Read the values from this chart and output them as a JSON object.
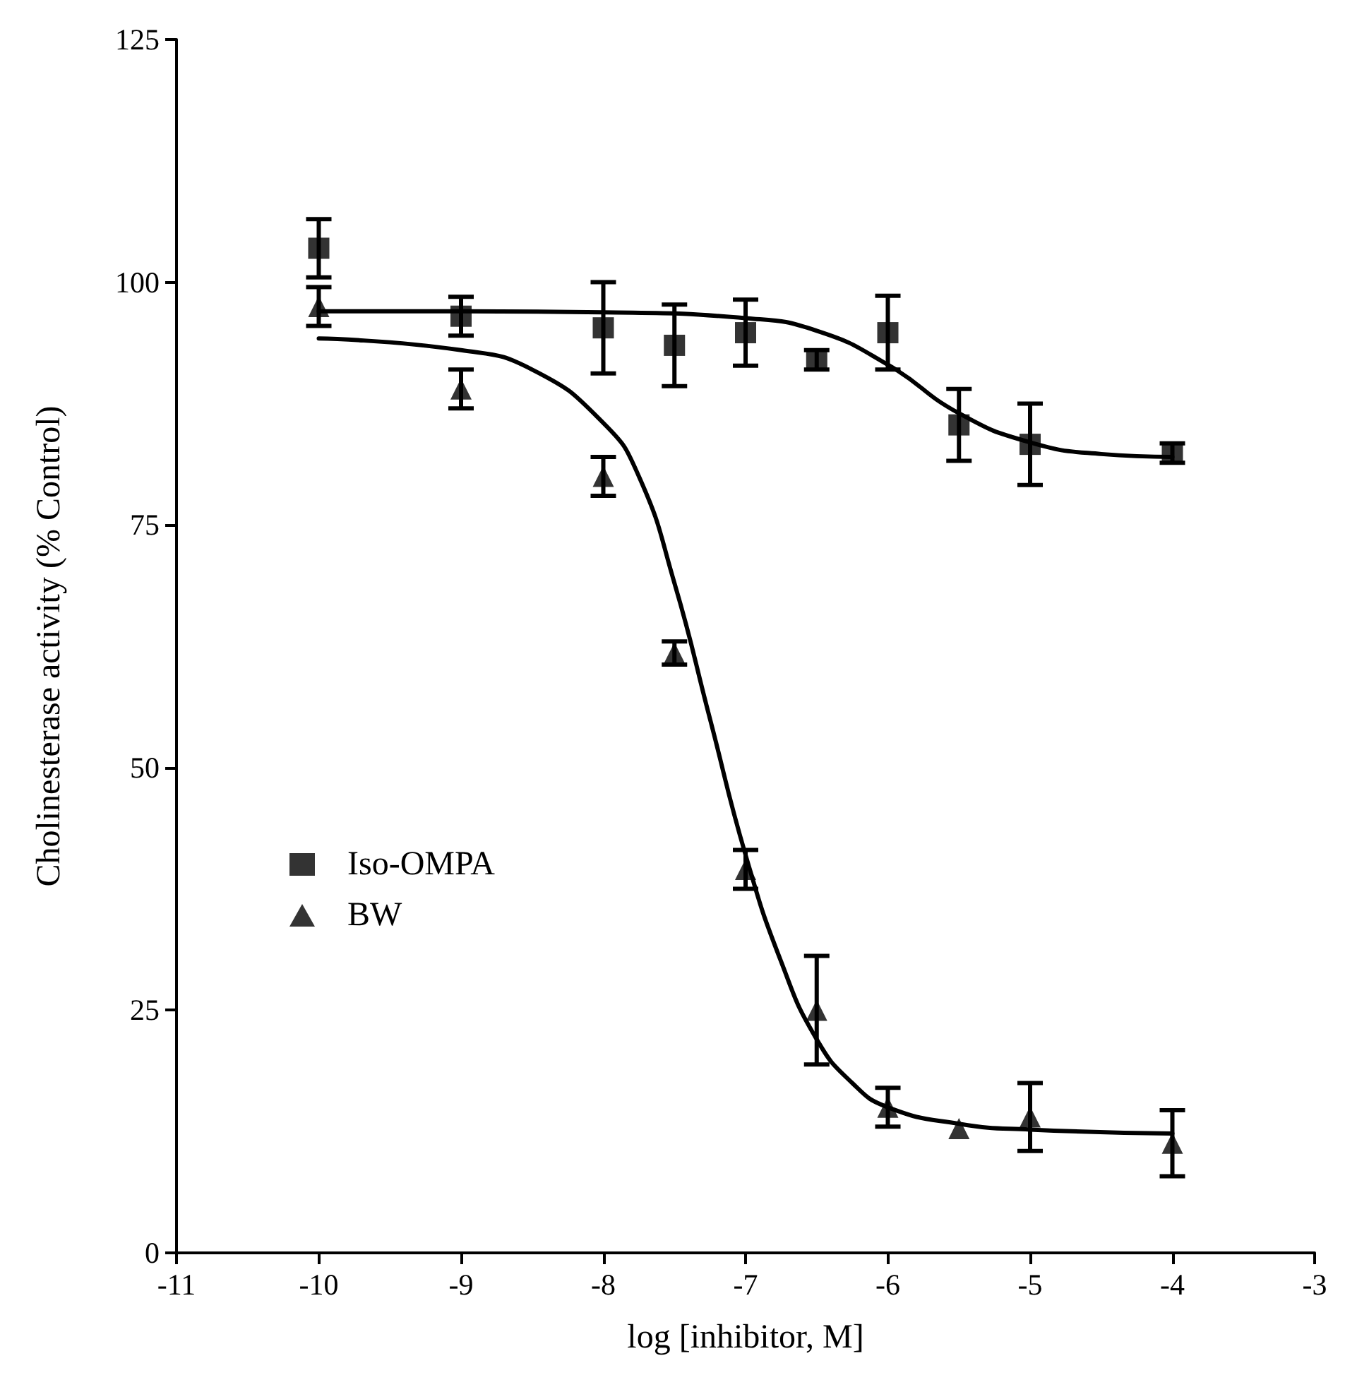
{
  "chart_data": {
    "type": "scatter",
    "xlabel": "log [inhibitor, M]",
    "ylabel": "Cholinesterase activity (% Control)",
    "xlim": [
      -11,
      -3
    ],
    "xticks": [
      -11,
      -10,
      -9,
      -8,
      -7,
      -6,
      -5,
      -4,
      -3
    ],
    "ylim": [
      0,
      125
    ],
    "yticks": [
      0,
      25,
      50,
      75,
      100,
      125
    ],
    "grid": false,
    "legend": "left",
    "series": [
      {
        "name": "Iso-OMPA",
        "color": "#000000",
        "marker": "square",
        "x": [
          -10,
          -9,
          -8,
          -7.5,
          -7,
          -6.5,
          -6,
          -5.5,
          -5,
          -4
        ],
        "values": [
          103.5,
          96.5,
          95.3,
          93.5,
          94.8,
          92,
          94.8,
          85.3,
          83.3,
          82.4
        ],
        "errors": [
          3,
          2,
          4.7,
          4.2,
          3.4,
          1,
          3.8,
          3.7,
          4.2,
          1
        ]
      },
      {
        "name": "BW",
        "color": "#000000",
        "marker": "triangle",
        "x": [
          -10,
          -9,
          -8,
          -7.5,
          -7,
          -6.5,
          -6,
          -5.5,
          -5,
          -4
        ],
        "values": [
          97.5,
          89,
          80,
          61.8,
          39.5,
          25,
          15,
          12.8,
          14,
          11.3
        ],
        "errors": [
          2,
          2,
          2,
          1.2,
          2,
          5.6,
          2,
          null,
          3.5,
          3.4
        ]
      },
      {
        "type": "line",
        "color": "#000000",
        "marker": "none",
        "x": [
          -10,
          -9,
          -8,
          -7,
          -6.5,
          -6,
          -5.5,
          -5,
          -4.5,
          -4
        ],
        "values": [
          97,
          97,
          96.9,
          96.3,
          95,
          91.5,
          86.5,
          83.5,
          82.3,
          82
        ]
      },
      {
        "type": "line",
        "color": "#000000",
        "marker": "none",
        "x": [
          -10,
          -9,
          -8.5,
          -8,
          -7.75,
          -7.5,
          -7.25,
          -7,
          -6.75,
          -6.5,
          -6.25,
          -6,
          -5.5,
          -5,
          -4
        ],
        "values": [
          94.2,
          93,
          91,
          85.5,
          80,
          69,
          55,
          41,
          30,
          22,
          17.5,
          15,
          13.3,
          12.7,
          12.3
        ]
      }
    ]
  }
}
